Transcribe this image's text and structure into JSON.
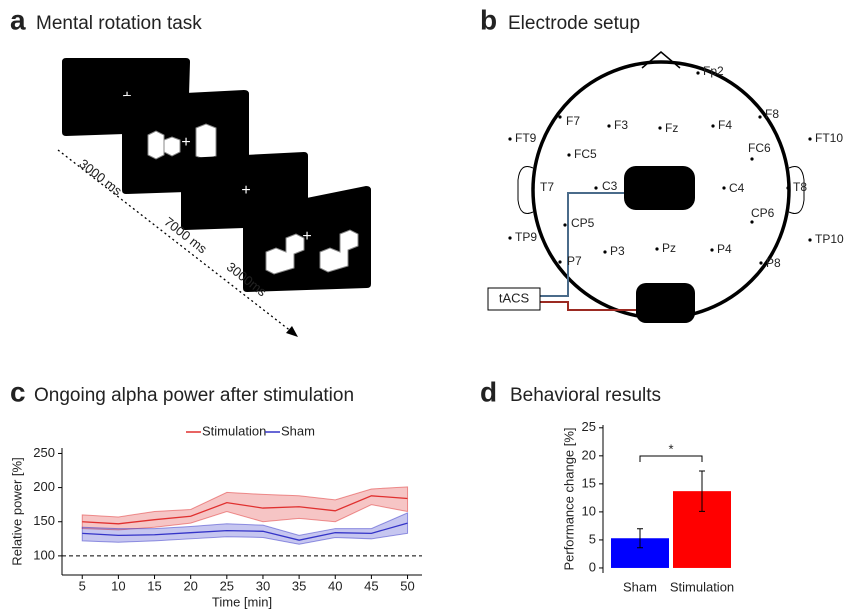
{
  "panel_a": {
    "letter": "a",
    "title": "Mental rotation task",
    "timings": [
      "3000 ms",
      "7000 ms",
      "3000ms"
    ]
  },
  "panel_b": {
    "letter": "b",
    "title": "Electrode setup",
    "stimulator": "tACS",
    "electrodes": [
      "Fp2",
      "F7",
      "F8",
      "FT9",
      "F3",
      "Fz",
      "F4",
      "FT10",
      "FC5",
      "FC6",
      "T7",
      "C3",
      "C4",
      "T8",
      "CP5",
      "CP6",
      "TP9",
      "TP10",
      "P3",
      "Pz",
      "P4",
      "P7",
      "P8"
    ]
  },
  "chart_data": [
    {
      "type": "line",
      "letter": "c",
      "title": "Ongoing alpha power after stimulation",
      "xlabel": "Time [min]",
      "ylabel": "Relative power [%]",
      "x": [
        5,
        10,
        15,
        20,
        25,
        30,
        35,
        40,
        45,
        50
      ],
      "xlim": [
        2.2,
        52
      ],
      "xticks": [
        5,
        10,
        15,
        20,
        25,
        30,
        35,
        40,
        45,
        50
      ],
      "ylim": [
        72,
        258
      ],
      "yticks": [
        100,
        150,
        200,
        250
      ],
      "hline": 100,
      "legend": "top",
      "series": [
        {
          "name": "Stimulation",
          "color": "#e0302f",
          "values": [
            150,
            147,
            153,
            158,
            178,
            170,
            172,
            166,
            188,
            184
          ],
          "lower": [
            140,
            138,
            142,
            148,
            165,
            150,
            155,
            150,
            175,
            165
          ],
          "upper": [
            160,
            157,
            165,
            168,
            193,
            190,
            188,
            182,
            198,
            201
          ]
        },
        {
          "name": "Sham",
          "color": "#3434c8",
          "values": [
            133,
            130,
            131,
            134,
            137,
            136,
            123,
            134,
            133,
            148
          ],
          "lower": [
            122,
            120,
            122,
            125,
            128,
            127,
            117,
            127,
            125,
            133
          ],
          "upper": [
            142,
            140,
            140,
            143,
            147,
            145,
            130,
            140,
            140,
            163
          ]
        }
      ]
    },
    {
      "type": "bar",
      "letter": "d",
      "title": "Behavioral results",
      "ylabel": "Performance change [%]",
      "categories": [
        "Sham",
        "Stimulation"
      ],
      "values": [
        5.3,
        13.7
      ],
      "errors": [
        1.7,
        3.6
      ],
      "colors": [
        "#0000ff",
        "#ff0000"
      ],
      "ylim": [
        -0.9,
        25.5
      ],
      "yticks": [
        0,
        5,
        10,
        15,
        20,
        25
      ],
      "significance": "*"
    }
  ]
}
